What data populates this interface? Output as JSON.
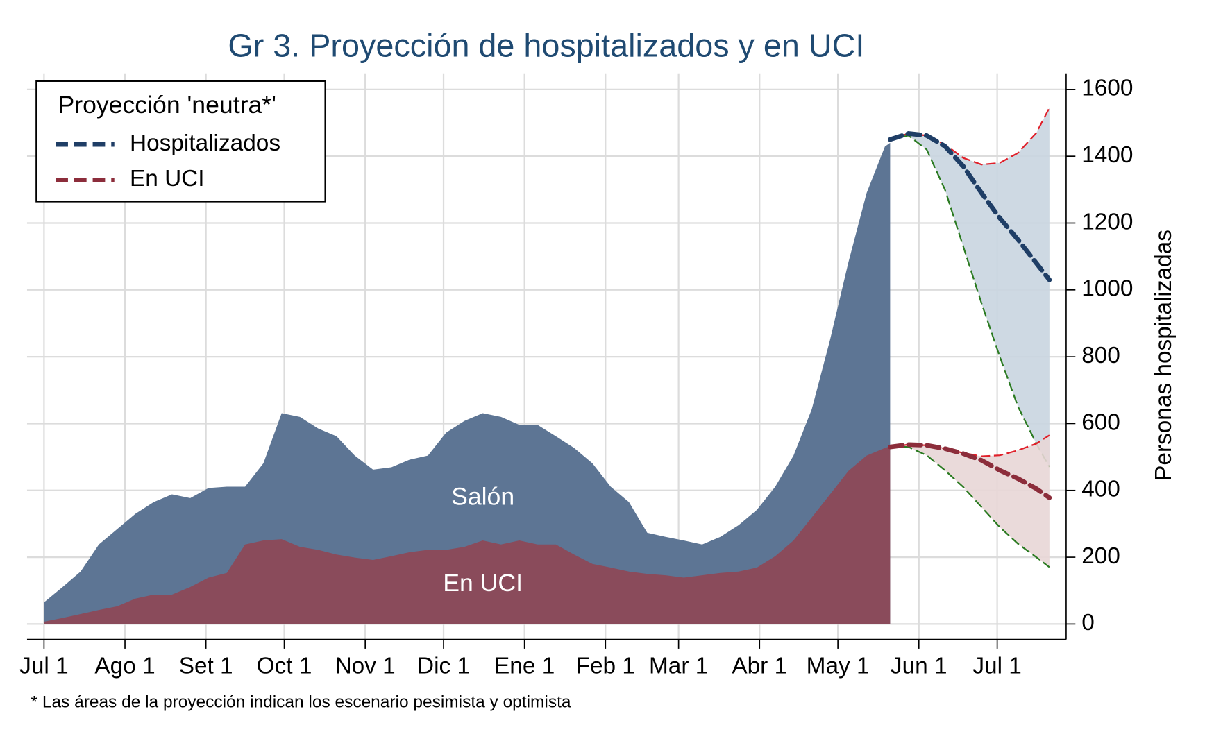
{
  "chart_data": {
    "type": "area",
    "title": "Gr 3. Proyección de hospitalizados y en UCI",
    "y_label": "Personas hospitalizadas",
    "footnote": "* Las áreas de la proyección indican los escenario pesimista y optimista",
    "legend_title": "Proyección 'neutra*'",
    "legend_position": "upper left",
    "grid": true,
    "xlim": [
      -6.5,
      391.4
    ],
    "ylim": [
      -46,
      1648
    ],
    "xticks": [
      {
        "value": 0,
        "label": "Jul 1"
      },
      {
        "value": 31,
        "label": "Ago 1"
      },
      {
        "value": 62,
        "label": "Set 1"
      },
      {
        "value": 92,
        "label": "Oct 1"
      },
      {
        "value": 123,
        "label": "Nov 1"
      },
      {
        "value": 153,
        "label": "Dic 1"
      },
      {
        "value": 184,
        "label": "Ene 1"
      },
      {
        "value": 215,
        "label": "Feb 1"
      },
      {
        "value": 243,
        "label": "Mar 1"
      },
      {
        "value": 274,
        "label": "Abr 1"
      },
      {
        "value": 304,
        "label": "May 1"
      },
      {
        "value": 335,
        "label": "Jun 1"
      },
      {
        "value": 365,
        "label": "Jul 1"
      }
    ],
    "yticks": [
      0,
      200,
      400,
      600,
      800,
      1000,
      1200,
      1400,
      1600
    ],
    "x": [
      0,
      7,
      14,
      21,
      28,
      35,
      42,
      49,
      56,
      63,
      70,
      77,
      84,
      91,
      98,
      105,
      112,
      119,
      126,
      133,
      140,
      147,
      154,
      161,
      168,
      175,
      182,
      189,
      196,
      203,
      210,
      217,
      224,
      231,
      238,
      245,
      252,
      259,
      266,
      273,
      280,
      287,
      294,
      301,
      308,
      315,
      322,
      324
    ],
    "series": [
      {
        "name": "Salón",
        "color": "#5d7594",
        "values": [
          65,
          110,
          157,
          238,
          284,
          330,
          365,
          388,
          377,
          407,
          411,
          411,
          481,
          631,
          620,
          585,
          562,
          504,
          462,
          469,
          492,
          504,
          573,
          608,
          631,
          620,
          596,
          596,
          562,
          527,
          481,
          411,
          365,
          273,
          261,
          250,
          238,
          261,
          296,
          342,
          411,
          504,
          643,
          851,
          1082,
          1290,
          1429,
          1440
        ]
      },
      {
        "name": "En UCI",
        "color": "#8a4b5b",
        "values": [
          7,
          18,
          30,
          42,
          53,
          76,
          88,
          88,
          111,
          139,
          153,
          238,
          250,
          254,
          231,
          222,
          208,
          199,
          192,
          203,
          215,
          222,
          222,
          231,
          250,
          238,
          250,
          238,
          238,
          208,
          180,
          169,
          157,
          150,
          146,
          139,
          146,
          153,
          157,
          169,
          203,
          250,
          319,
          388,
          458,
          504,
          527,
          532
        ]
      }
    ],
    "projection_x": [
      324,
      331,
      338,
      345,
      352,
      359,
      366,
      373,
      380,
      385
    ],
    "projections": [
      {
        "name": "Hospitalizados",
        "color": "#1f3e66",
        "band_color": "#c9d5e0",
        "values": [
          1450,
          1468,
          1462,
          1430,
          1370,
          1290,
          1215,
          1150,
          1080,
          1030
        ],
        "upper": [
          1450,
          1468,
          1462,
          1435,
          1395,
          1375,
          1380,
          1410,
          1470,
          1545
        ],
        "lower": [
          1450,
          1462,
          1420,
          1300,
          1130,
          960,
          800,
          650,
          540,
          470
        ]
      },
      {
        "name": "En UCI",
        "color": "#8c2d3b",
        "band_color": "#e8d6d6",
        "values": [
          530,
          537,
          535,
          525,
          510,
          490,
          460,
          435,
          405,
          378
        ],
        "upper": [
          530,
          537,
          535,
          525,
          512,
          502,
          505,
          520,
          540,
          565
        ],
        "lower": [
          530,
          530,
          505,
          460,
          410,
          350,
          290,
          240,
          200,
          170
        ]
      }
    ],
    "upper_color": "#e0202a",
    "lower_color": "#2a7a20"
  }
}
